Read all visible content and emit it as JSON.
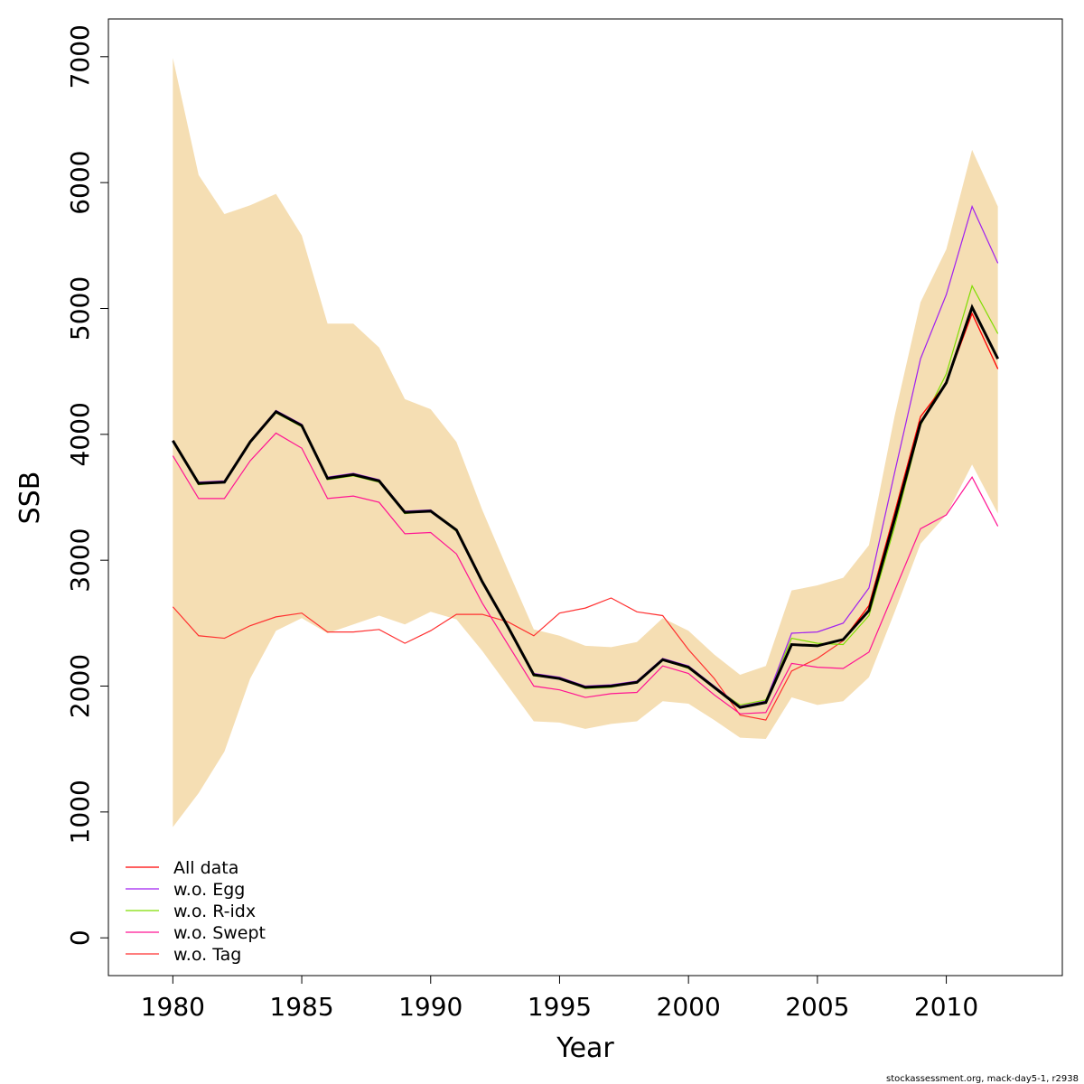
{
  "chart_data": {
    "type": "line",
    "xlabel": "Year",
    "ylabel": "SSB",
    "xlim": [
      1977.5,
      2014.5
    ],
    "ylim": [
      -300,
      7300
    ],
    "x_ticks": [
      1980,
      1985,
      1990,
      1995,
      2000,
      2005,
      2010
    ],
    "y_ticks": [
      0,
      1000,
      2000,
      3000,
      4000,
      5000,
      6000,
      7000
    ],
    "grid": false,
    "legend_position": "bottom-left",
    "colors": {
      "band": "#f5deb3",
      "main": "#000000",
      "frame": "#000000"
    },
    "x": [
      1980,
      1981,
      1982,
      1983,
      1984,
      1985,
      1986,
      1987,
      1988,
      1989,
      1990,
      1991,
      1992,
      1993,
      1994,
      1995,
      1996,
      1997,
      1998,
      1999,
      2000,
      2001,
      2002,
      2003,
      2004,
      2005,
      2006,
      2007,
      2008,
      2009,
      2010,
      2011,
      2012
    ],
    "band": {
      "lower": [
        880,
        1150,
        1480,
        2060,
        2440,
        2540,
        2420,
        2490,
        2560,
        2490,
        2590,
        2530,
        2280,
        2000,
        1720,
        1710,
        1660,
        1700,
        1720,
        1880,
        1860,
        1730,
        1590,
        1580,
        1910,
        1850,
        1880,
        2070,
        2590,
        3130,
        3360,
        3760,
        3370
      ],
      "upper": [
        6990,
        6060,
        5750,
        5820,
        5910,
        5580,
        4880,
        4880,
        4690,
        4280,
        4200,
        3940,
        3400,
        2920,
        2450,
        2400,
        2320,
        2310,
        2350,
        2540,
        2440,
        2250,
        2090,
        2160,
        2760,
        2800,
        2860,
        3120,
        4150,
        5050,
        5470,
        6260,
        5810
      ]
    },
    "main": [
      3950,
      3610,
      3620,
      3940,
      4180,
      4070,
      3650,
      3680,
      3630,
      3380,
      3390,
      3240,
      2830,
      2470,
      2090,
      2060,
      1990,
      2000,
      2030,
      2210,
      2150,
      1990,
      1830,
      1870,
      2330,
      2320,
      2370,
      2600,
      3330,
      4090,
      4410,
      5010,
      4600
    ],
    "series": [
      {
        "name": "All data",
        "color": "#ff0000",
        "values": [
          3950,
          3610,
          3620,
          3940,
          4180,
          4070,
          3650,
          3680,
          3630,
          3380,
          3390,
          3240,
          2830,
          2470,
          2090,
          2060,
          1990,
          2000,
          2030,
          2210,
          2150,
          1990,
          1830,
          1870,
          2330,
          2320,
          2370,
          2640,
          3380,
          4140,
          4410,
          4960,
          4520
        ]
      },
      {
        "name": "w.o. Egg",
        "color": "#a020f0",
        "values": [
          3950,
          3620,
          3630,
          3950,
          4190,
          4080,
          3660,
          3690,
          3640,
          3390,
          3400,
          3240,
          2830,
          2470,
          2100,
          2070,
          2000,
          2010,
          2040,
          2220,
          2160,
          2000,
          1840,
          1880,
          2420,
          2430,
          2500,
          2780,
          3700,
          4600,
          5110,
          5810,
          5360
        ]
      },
      {
        "name": "w.o. R-idx",
        "color": "#7fdd00",
        "values": [
          3940,
          3600,
          3620,
          3940,
          4170,
          4060,
          3640,
          3670,
          3620,
          3370,
          3390,
          3230,
          2820,
          2460,
          2080,
          2060,
          1980,
          1990,
          2030,
          2210,
          2140,
          1990,
          1850,
          1890,
          2380,
          2340,
          2330,
          2560,
          3270,
          4070,
          4480,
          5180,
          4800
        ]
      },
      {
        "name": "w.o. Swept",
        "color": "#ff1493",
        "values": [
          3830,
          3490,
          3490,
          3790,
          4010,
          3890,
          3490,
          3510,
          3460,
          3210,
          3220,
          3050,
          2660,
          2330,
          2000,
          1970,
          1910,
          1940,
          1950,
          2160,
          2100,
          1930,
          1780,
          1790,
          2180,
          2150,
          2140,
          2270,
          2760,
          3250,
          3360,
          3660,
          3270
        ]
      },
      {
        "name": "w.o. Tag",
        "color": "#ff3030",
        "values": [
          2630,
          2400,
          2380,
          2480,
          2550,
          2580,
          2430,
          2430,
          2450,
          2340,
          2440,
          2570,
          2570,
          2510,
          2400,
          2580,
          2620,
          2700,
          2590,
          2560,
          2290,
          2060,
          1770,
          1730,
          2120,
          2220,
          2360,
          2640,
          3380,
          4140,
          4410,
          4960,
          4520
        ]
      }
    ],
    "footer": "stockassessment.org, mack-day5-1, r2938"
  }
}
